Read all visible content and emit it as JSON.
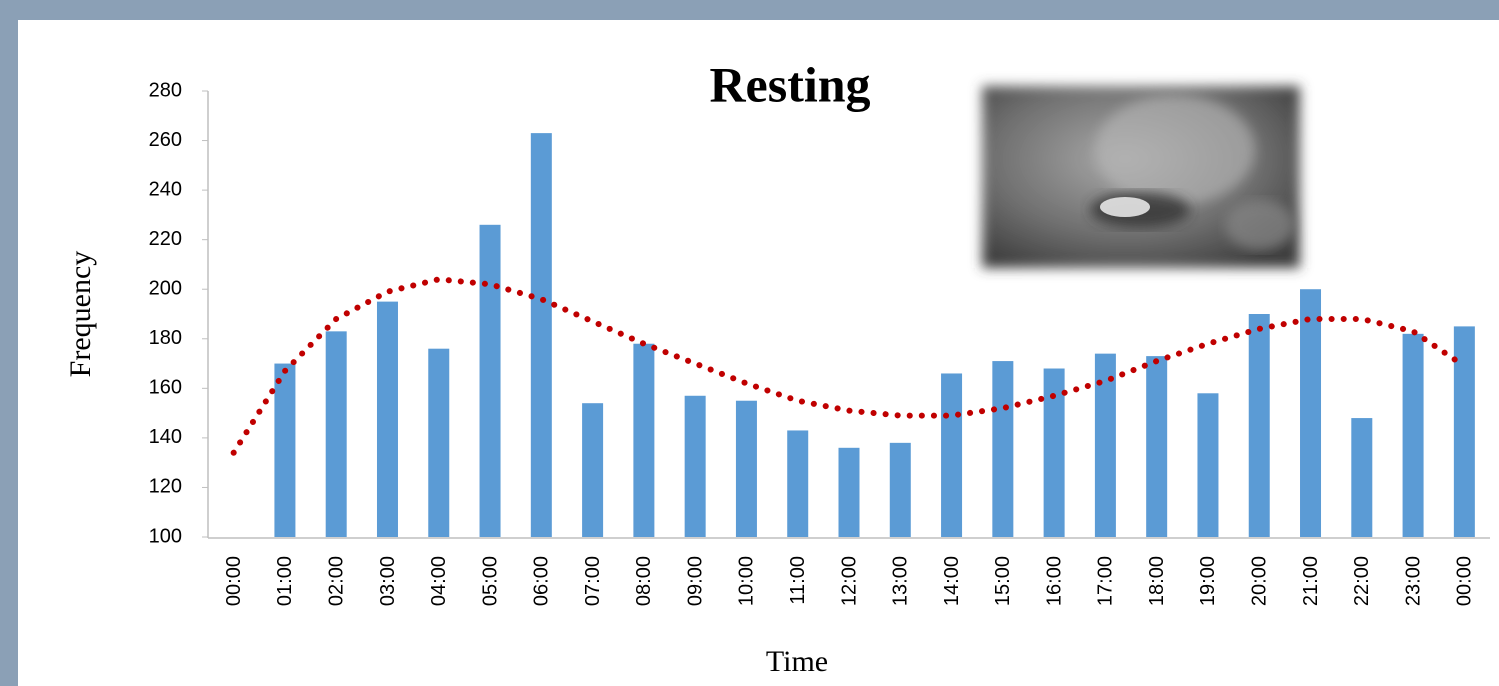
{
  "chart_data": {
    "type": "bar",
    "title": "Resting",
    "x_label": "Time",
    "y_label": "Frequency",
    "categories": [
      "00:00",
      "01:00",
      "02:00",
      "03:00",
      "04:00",
      "05:00",
      "06:00",
      "07:00",
      "08:00",
      "09:00",
      "10:00",
      "11:00",
      "12:00",
      "13:00",
      "14:00",
      "15:00",
      "16:00",
      "17:00",
      "18:00",
      "19:00",
      "20:00",
      "21:00",
      "22:00",
      "23:00",
      "00:00"
    ],
    "series": [
      {
        "type": "bar",
        "color": "#5b9bd5",
        "values": [
          null,
          170,
          183,
          195,
          176,
          226,
          263,
          154,
          178,
          157,
          155,
          143,
          136,
          138,
          166,
          171,
          168,
          174,
          173,
          158,
          190,
          200,
          148,
          182,
          185
        ]
      },
      {
        "type": "line",
        "style": "dotted",
        "color": "#c00000",
        "values": [
          134,
          167,
          188,
          199,
          204,
          202,
          196,
          187,
          178,
          170,
          162,
          155,
          151,
          149,
          149,
          152,
          157,
          163,
          171,
          178,
          184,
          188,
          188,
          183,
          169
        ]
      }
    ],
    "ylim": [
      100,
      280
    ],
    "yticks": [
      100,
      120,
      140,
      160,
      180,
      200,
      220,
      240,
      260,
      280
    ],
    "grid": false
  }
}
